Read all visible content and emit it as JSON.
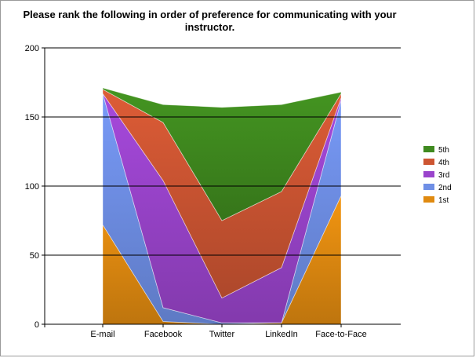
{
  "chart_data": {
    "type": "area",
    "stacked": true,
    "title_line1": "Please rank the following in order of preference for communicating with your",
    "title_line2": "instructor.",
    "categories": [
      "E-mail",
      "Facebook",
      "Twitter",
      "LinkedIn",
      "Face-to-Face"
    ],
    "ylim": [
      0,
      200
    ],
    "yticks": [
      0,
      50,
      100,
      150,
      200
    ],
    "grid": true,
    "legend_position": "right",
    "series": [
      {
        "name": "1st",
        "color": "#e08a10",
        "values": [
          72,
          2,
          0,
          1,
          93
        ]
      },
      {
        "name": "2nd",
        "color": "#6f8fe6",
        "values": [
          95,
          10,
          1,
          0,
          69
        ]
      },
      {
        "name": "3rd",
        "color": "#9a44cc",
        "values": [
          0,
          92,
          18,
          40,
          2
        ]
      },
      {
        "name": "4th",
        "color": "#cd5532",
        "values": [
          3,
          42,
          56,
          55,
          3
        ]
      },
      {
        "name": "5th",
        "color": "#3f8a1f",
        "values": [
          1,
          13,
          82,
          63,
          1
        ]
      }
    ]
  }
}
